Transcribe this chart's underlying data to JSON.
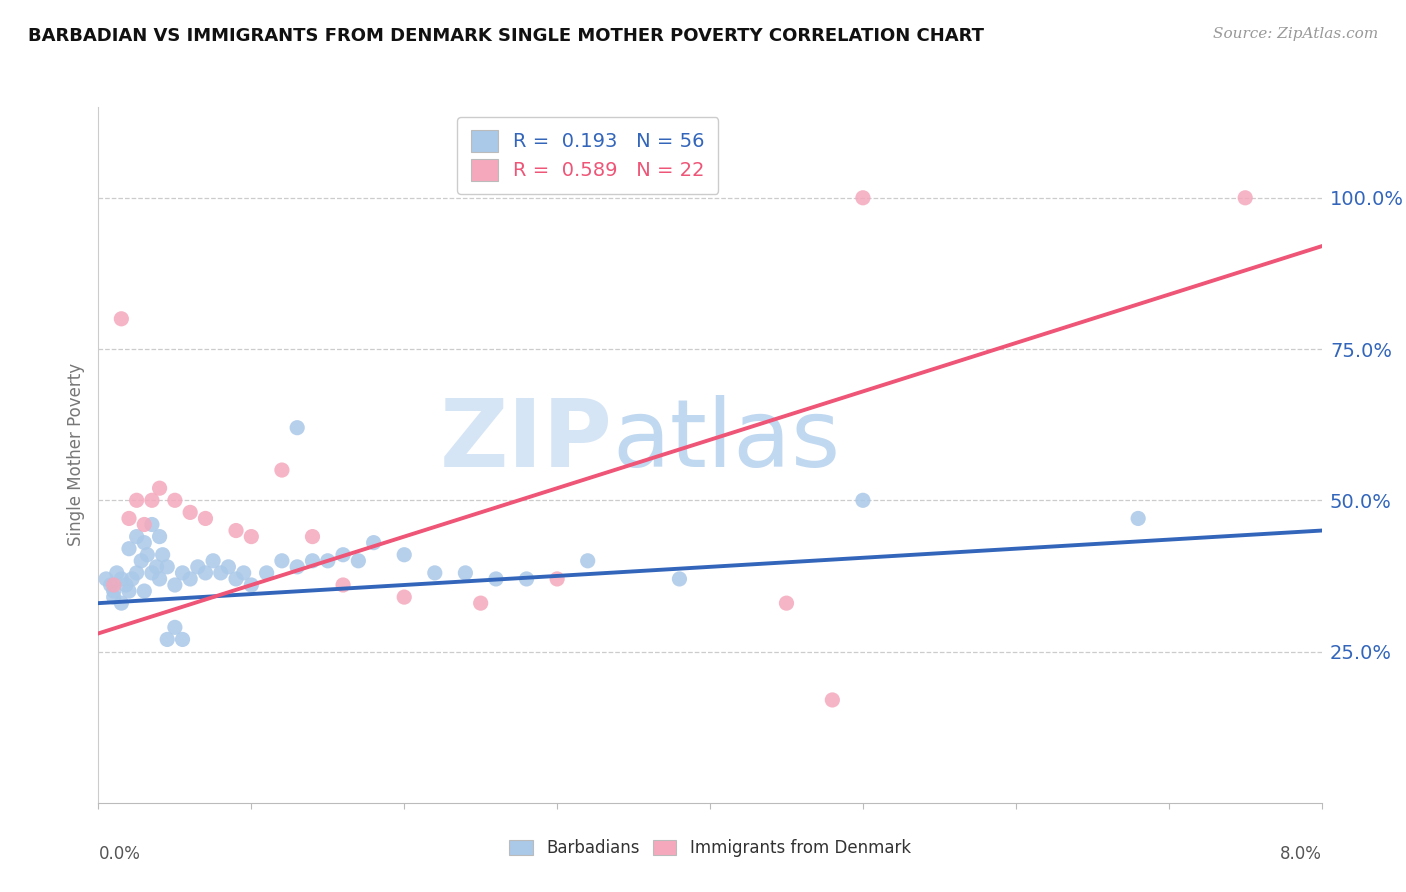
{
  "title": "BARBADIAN VS IMMIGRANTS FROM DENMARK SINGLE MOTHER POVERTY CORRELATION CHART",
  "source": "Source: ZipAtlas.com",
  "ylabel": "Single Mother Poverty",
  "xlim": [
    0.0,
    8.0
  ],
  "ylim": [
    0.0,
    115.0
  ],
  "ytick_labels": [
    "25.0%",
    "50.0%",
    "75.0%",
    "100.0%"
  ],
  "ytick_values": [
    25.0,
    50.0,
    75.0,
    100.0
  ],
  "legend_blue_r": "R =  0.193",
  "legend_blue_n": "N = 56",
  "legend_pink_r": "R =  0.589",
  "legend_pink_n": "N = 22",
  "blue_color": "#aac8e8",
  "pink_color": "#f5a8bc",
  "blue_line_color": "#3366bb",
  "pink_line_color": "#ee5577",
  "blue_scatter": [
    [
      0.05,
      37
    ],
    [
      0.08,
      36
    ],
    [
      0.1,
      35
    ],
    [
      0.1,
      34
    ],
    [
      0.12,
      38
    ],
    [
      0.15,
      33
    ],
    [
      0.15,
      37
    ],
    [
      0.18,
      36
    ],
    [
      0.2,
      35
    ],
    [
      0.2,
      42
    ],
    [
      0.22,
      37
    ],
    [
      0.25,
      38
    ],
    [
      0.25,
      44
    ],
    [
      0.28,
      40
    ],
    [
      0.3,
      35
    ],
    [
      0.3,
      43
    ],
    [
      0.32,
      41
    ],
    [
      0.35,
      38
    ],
    [
      0.35,
      46
    ],
    [
      0.38,
      39
    ],
    [
      0.4,
      37
    ],
    [
      0.4,
      44
    ],
    [
      0.42,
      41
    ],
    [
      0.45,
      39
    ],
    [
      0.45,
      27
    ],
    [
      0.5,
      36
    ],
    [
      0.5,
      29
    ],
    [
      0.55,
      38
    ],
    [
      0.55,
      27
    ],
    [
      0.6,
      37
    ],
    [
      0.65,
      39
    ],
    [
      0.7,
      38
    ],
    [
      0.75,
      40
    ],
    [
      0.8,
      38
    ],
    [
      0.85,
      39
    ],
    [
      0.9,
      37
    ],
    [
      0.95,
      38
    ],
    [
      1.0,
      36
    ],
    [
      1.1,
      38
    ],
    [
      1.2,
      40
    ],
    [
      1.3,
      39
    ],
    [
      1.3,
      62
    ],
    [
      1.4,
      40
    ],
    [
      1.5,
      40
    ],
    [
      1.6,
      41
    ],
    [
      1.7,
      40
    ],
    [
      1.8,
      43
    ],
    [
      2.0,
      41
    ],
    [
      2.2,
      38
    ],
    [
      2.4,
      38
    ],
    [
      2.6,
      37
    ],
    [
      2.8,
      37
    ],
    [
      3.2,
      40
    ],
    [
      3.8,
      37
    ],
    [
      5.0,
      50
    ],
    [
      6.8,
      47
    ]
  ],
  "pink_scatter": [
    [
      0.1,
      36
    ],
    [
      0.15,
      80
    ],
    [
      0.2,
      47
    ],
    [
      0.25,
      50
    ],
    [
      0.3,
      46
    ],
    [
      0.35,
      50
    ],
    [
      0.4,
      52
    ],
    [
      0.5,
      50
    ],
    [
      0.6,
      48
    ],
    [
      0.7,
      47
    ],
    [
      0.9,
      45
    ],
    [
      1.0,
      44
    ],
    [
      1.2,
      55
    ],
    [
      1.4,
      44
    ],
    [
      1.6,
      36
    ],
    [
      2.0,
      34
    ],
    [
      2.5,
      33
    ],
    [
      3.0,
      37
    ],
    [
      4.5,
      33
    ],
    [
      4.8,
      17
    ],
    [
      5.0,
      100
    ],
    [
      7.5,
      100
    ]
  ],
  "blue_line_x": [
    0.0,
    8.0
  ],
  "blue_line_y": [
    33.0,
    45.0
  ],
  "pink_line_x": [
    0.0,
    8.0
  ],
  "pink_line_y": [
    28.0,
    92.0
  ]
}
